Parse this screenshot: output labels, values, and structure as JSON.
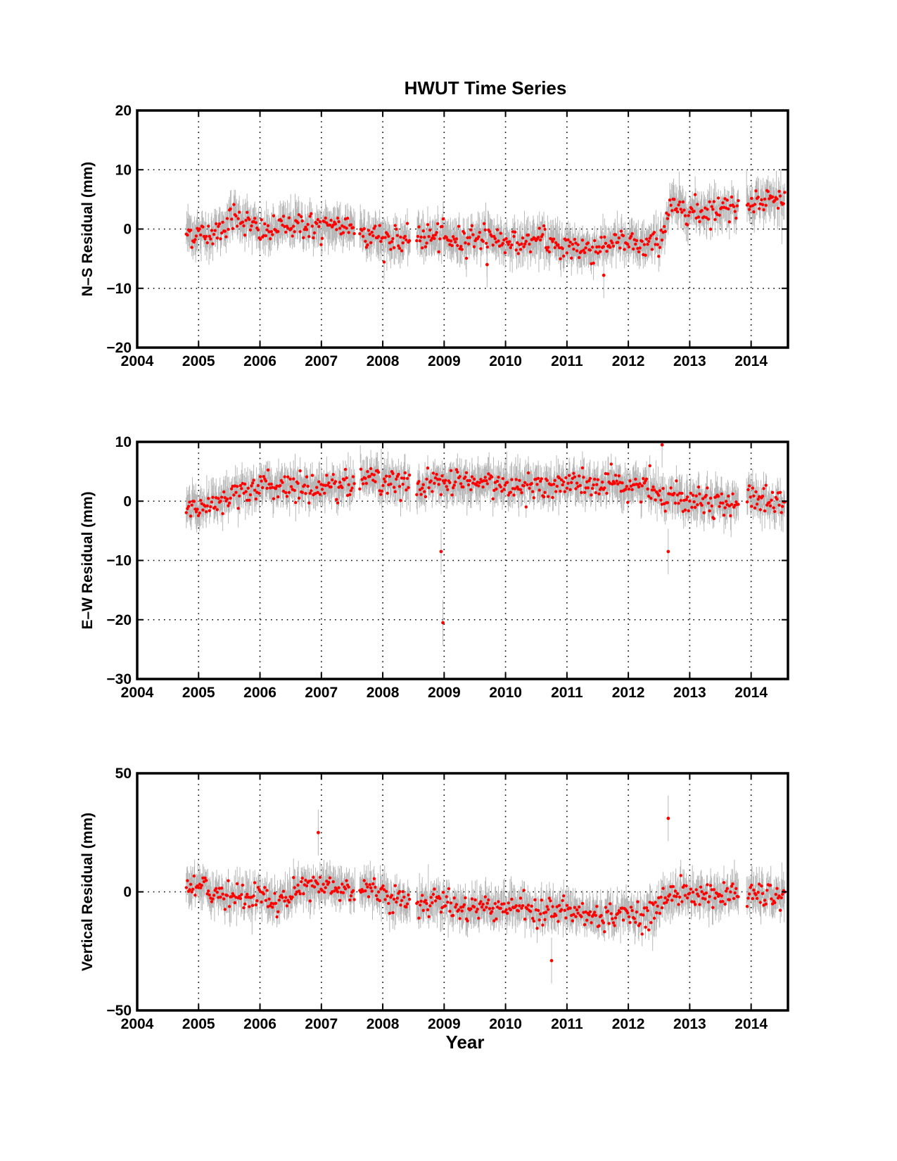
{
  "figure": {
    "title": "HWUT Time Series",
    "xlabel": "Year"
  },
  "colors": {
    "points": "#ff0000",
    "error_bars": "#b8b8b8",
    "axes": "#000000",
    "grid": "#000000"
  },
  "chart_data": [
    {
      "type": "scatter",
      "title": "HWUT Time Series",
      "xlabel": "",
      "ylabel": "N–S Residual (mm)",
      "xlim": [
        2004,
        2014.6
      ],
      "ylim": [
        -20,
        20
      ],
      "xticks": [
        2004,
        2005,
        2006,
        2007,
        2008,
        2009,
        2010,
        2011,
        2012,
        2013,
        2014
      ],
      "yticks": [
        -20,
        -10,
        0,
        10,
        20
      ],
      "grid": true,
      "error_bars": true,
      "data_gaps": [
        [
          2007.55,
          2007.62
        ],
        [
          2008.45,
          2008.55
        ],
        [
          2013.8,
          2013.92
        ]
      ],
      "series": [
        {
          "x": [
            2004.8,
            2005.0,
            2005.2,
            2005.4,
            2005.6,
            2005.8,
            2006.0,
            2006.2,
            2006.4,
            2006.6,
            2006.8,
            2007.0,
            2007.2,
            2007.5,
            2007.65,
            2007.8,
            2008.0,
            2008.2,
            2008.4,
            2008.6,
            2008.8,
            2009.0,
            2009.2,
            2009.4,
            2009.6,
            2009.8,
            2010.0,
            2010.2,
            2010.4,
            2010.6,
            2010.8,
            2011.0,
            2011.2,
            2011.4,
            2011.6,
            2011.8,
            2012.0,
            2012.2,
            2012.4,
            2012.55,
            2012.7,
            2012.9,
            2013.1,
            2013.3,
            2013.5,
            2013.75,
            2013.95,
            2014.1,
            2014.3,
            2014.55
          ],
          "y": [
            -0.5,
            -1.0,
            -0.8,
            0.5,
            2.5,
            1.0,
            -0.5,
            -0.3,
            0.5,
            1.0,
            0.5,
            0.0,
            0.3,
            0.5,
            0.0,
            -1.0,
            -1.5,
            -2.0,
            -2.2,
            -1.0,
            -1.5,
            -1.5,
            -2.0,
            -1.5,
            -1.0,
            -1.5,
            -2.0,
            -2.5,
            -2.0,
            -2.0,
            -2.5,
            -3.0,
            -3.2,
            -3.5,
            -2.5,
            -2.0,
            -2.5,
            -2.8,
            -2.5,
            -1.0,
            4.0,
            3.5,
            3.0,
            3.2,
            3.5,
            4.0,
            4.5,
            5.0,
            4.8,
            5.2
          ]
        }
      ],
      "outliers": [
        {
          "x": 2011.6,
          "y": -7.8
        },
        {
          "x": 2009.7,
          "y": -6.0
        }
      ]
    },
    {
      "type": "scatter",
      "xlabel": "",
      "ylabel": "E–W Residual (mm)",
      "xlim": [
        2004,
        2014.6
      ],
      "ylim": [
        -30,
        10
      ],
      "xticks": [
        2004,
        2005,
        2006,
        2007,
        2008,
        2009,
        2010,
        2011,
        2012,
        2013,
        2014
      ],
      "yticks": [
        -30,
        -20,
        -10,
        0,
        10
      ],
      "grid": true,
      "error_bars": true,
      "data_gaps": [
        [
          2007.55,
          2007.62
        ],
        [
          2008.45,
          2008.55
        ],
        [
          2013.8,
          2013.92
        ]
      ],
      "series": [
        {
          "x": [
            2004.8,
            2005.0,
            2005.2,
            2005.4,
            2005.6,
            2005.8,
            2006.0,
            2006.2,
            2006.4,
            2006.6,
            2006.8,
            2007.0,
            2007.2,
            2007.5,
            2007.65,
            2007.8,
            2008.0,
            2008.2,
            2008.4,
            2008.6,
            2008.8,
            2009.0,
            2009.2,
            2009.4,
            2009.6,
            2009.8,
            2010.0,
            2010.2,
            2010.4,
            2010.6,
            2010.8,
            2011.0,
            2011.2,
            2011.4,
            2011.6,
            2011.8,
            2012.0,
            2012.2,
            2012.4,
            2012.6,
            2012.8,
            2013.0,
            2013.2,
            2013.4,
            2013.6,
            2013.75,
            2013.95,
            2014.1,
            2014.3,
            2014.55
          ],
          "y": [
            -1.0,
            -1.0,
            0.0,
            0.5,
            1.5,
            2.0,
            2.5,
            2.5,
            2.5,
            2.5,
            2.5,
            2.5,
            2.5,
            3.0,
            4.0,
            4.0,
            3.5,
            3.0,
            2.5,
            2.5,
            3.0,
            3.0,
            3.0,
            2.8,
            3.0,
            2.8,
            2.8,
            3.0,
            2.8,
            2.5,
            3.0,
            3.0,
            3.0,
            2.8,
            2.5,
            2.5,
            2.8,
            2.5,
            2.0,
            1.0,
            0.5,
            0.5,
            0.5,
            0.0,
            -0.5,
            0.0,
            0.5,
            0.5,
            0.0,
            -0.5
          ]
        }
      ],
      "outliers": [
        {
          "x": 2008.95,
          "y": -8.5
        },
        {
          "x": 2008.98,
          "y": -20.5
        },
        {
          "x": 2012.65,
          "y": -8.5
        },
        {
          "x": 2012.55,
          "y": 9.5
        }
      ]
    },
    {
      "type": "scatter",
      "xlabel": "Year",
      "ylabel": "Vertical Residual (mm)",
      "xlim": [
        2004,
        2014.6
      ],
      "ylim": [
        -50,
        50
      ],
      "xticks": [
        2004,
        2005,
        2006,
        2007,
        2008,
        2009,
        2010,
        2011,
        2012,
        2013,
        2014
      ],
      "yticks": [
        -50,
        0,
        50
      ],
      "grid": true,
      "error_bars": true,
      "data_gaps": [
        [
          2007.55,
          2007.62
        ],
        [
          2008.45,
          2008.55
        ],
        [
          2013.8,
          2013.92
        ]
      ],
      "series": [
        {
          "x": [
            2004.8,
            2005.0,
            2005.2,
            2005.4,
            2005.6,
            2005.8,
            2006.0,
            2006.2,
            2006.4,
            2006.6,
            2006.8,
            2007.0,
            2007.2,
            2007.5,
            2007.65,
            2007.8,
            2008.0,
            2008.2,
            2008.4,
            2008.6,
            2008.8,
            2009.0,
            2009.2,
            2009.4,
            2009.6,
            2009.8,
            2010.0,
            2010.2,
            2010.4,
            2010.6,
            2010.8,
            2011.0,
            2011.2,
            2011.4,
            2011.6,
            2011.8,
            2012.0,
            2012.2,
            2012.4,
            2012.6,
            2012.8,
            2013.0,
            2013.2,
            2013.4,
            2013.6,
            2013.75,
            2013.95,
            2014.1,
            2014.3,
            2014.55
          ],
          "y": [
            4.0,
            2.0,
            0.0,
            -1.0,
            -2.0,
            -1.0,
            -2.0,
            -4.0,
            -3.0,
            1.0,
            3.0,
            3.0,
            2.0,
            1.5,
            2.0,
            1.0,
            0.0,
            -3.0,
            -5.0,
            -5.0,
            -4.0,
            -4.0,
            -6.0,
            -8.0,
            -6.0,
            -6.0,
            -6.0,
            -6.0,
            -7.0,
            -8.0,
            -8.0,
            -8.0,
            -9.0,
            -10.0,
            -10.0,
            -9.0,
            -9.0,
            -9.0,
            -10.0,
            -2.0,
            -1.0,
            -1.0,
            -1.0,
            -2.0,
            -2.0,
            1.0,
            -1.0,
            -1.0,
            -2.0,
            -1.0
          ]
        }
      ],
      "outliers": [
        {
          "x": 2006.95,
          "y": 25.0
        },
        {
          "x": 2012.65,
          "y": 31.0
        },
        {
          "x": 2010.75,
          "y": -29.0
        }
      ]
    }
  ]
}
